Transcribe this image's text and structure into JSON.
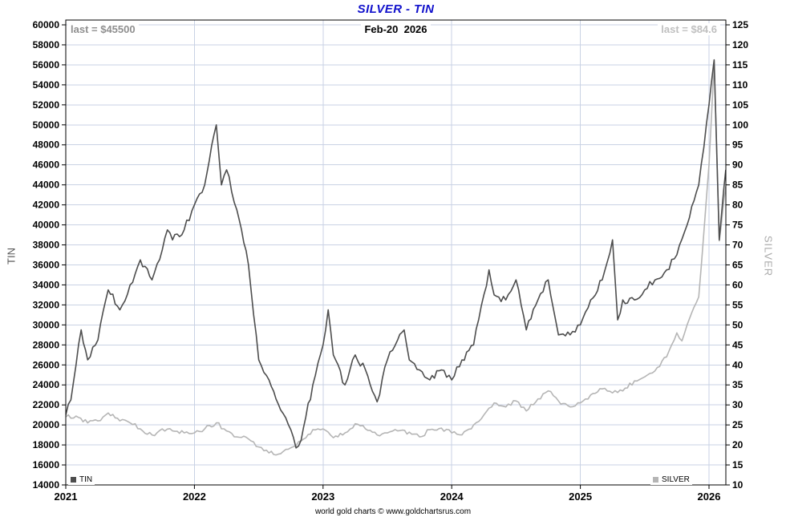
{
  "annotations": {
    "tin_last": "last = $45500",
    "date": "Feb-20  2026",
    "silver_last": "last = $84.6"
  },
  "footer": {
    "text": "world gold charts © www.goldchartsrus.com"
  },
  "colors": {
    "title": "#1111cc",
    "tin_line": "#4d4d4d",
    "silver_line": "#b5b5b5",
    "grid": "#c9d2e4",
    "plot_border": "#000000",
    "axis_text": "#000000",
    "tin_annotation": "#8f8f8f",
    "date_annotation": "#000000",
    "silver_annotation": "#c0c0c0",
    "left_axis_title": "#595959",
    "right_axis_title": "#ababab"
  },
  "chart_data": {
    "type": "line",
    "title": "SILVER - TIN",
    "grid": true,
    "x_ticks": [
      "2021",
      "2022",
      "2023",
      "2024",
      "2025",
      "2026"
    ],
    "x_range": [
      2021.0,
      2026.13
    ],
    "left_axis": {
      "label": "TIN",
      "min": 14000,
      "max": 60000,
      "step": 2000,
      "ticks": [
        14000,
        16000,
        18000,
        20000,
        22000,
        24000,
        26000,
        28000,
        30000,
        32000,
        34000,
        36000,
        38000,
        40000,
        42000,
        44000,
        46000,
        48000,
        50000,
        52000,
        54000,
        56000,
        58000,
        60000
      ]
    },
    "right_axis": {
      "label": "SILVER",
      "min": 10,
      "max": 125,
      "step": 5,
      "ticks": [
        10,
        15,
        20,
        25,
        30,
        35,
        40,
        45,
        50,
        55,
        60,
        65,
        70,
        75,
        80,
        85,
        90,
        95,
        100,
        105,
        110,
        115,
        120,
        125
      ]
    },
    "series": [
      {
        "name": "TIN",
        "axis": "left",
        "color": "#4d4d4d",
        "last_value": 45500,
        "x": [
          2021.0,
          2021.04,
          2021.08,
          2021.12,
          2021.17,
          2021.25,
          2021.33,
          2021.42,
          2021.5,
          2021.58,
          2021.67,
          2021.75,
          2021.79,
          2021.83,
          2021.92,
          2022.0,
          2022.08,
          2022.17,
          2022.21,
          2022.25,
          2022.33,
          2022.42,
          2022.5,
          2022.58,
          2022.67,
          2022.75,
          2022.79,
          2022.83,
          2022.92,
          2023.0,
          2023.04,
          2023.08,
          2023.17,
          2023.25,
          2023.33,
          2023.42,
          2023.5,
          2023.58,
          2023.63,
          2023.67,
          2023.75,
          2023.83,
          2023.92,
          2024.0,
          2024.08,
          2024.17,
          2024.25,
          2024.29,
          2024.33,
          2024.42,
          2024.5,
          2024.58,
          2024.67,
          2024.75,
          2024.83,
          2024.92,
          2025.0,
          2025.08,
          2025.17,
          2025.25,
          2025.29,
          2025.33,
          2025.42,
          2025.5,
          2025.58,
          2025.67,
          2025.75,
          2025.83,
          2025.92,
          2026.0,
          2026.04,
          2026.08,
          2026.13
        ],
        "values": [
          21000,
          22500,
          26000,
          29500,
          26500,
          28500,
          33500,
          31500,
          34000,
          36500,
          34500,
          37500,
          39500,
          38500,
          39500,
          42000,
          44000,
          50000,
          44000,
          45500,
          41500,
          36000,
          26500,
          24500,
          21500,
          19500,
          17700,
          18500,
          24000,
          28000,
          31500,
          27000,
          24000,
          27000,
          25500,
          22300,
          26500,
          28500,
          29500,
          26500,
          25500,
          24500,
          25500,
          24500,
          26500,
          28000,
          33000,
          35500,
          33000,
          32500,
          34500,
          29500,
          32500,
          34500,
          29000,
          29000,
          30000,
          32500,
          34500,
          38500,
          30500,
          32500,
          32500,
          33500,
          34500,
          35500,
          37000,
          40000,
          44000,
          52000,
          56500,
          38500,
          45500
        ]
      },
      {
        "name": "SILVER",
        "axis": "right",
        "color": "#b5b5b5",
        "last_value": 84.6,
        "x": [
          2021.0,
          2021.08,
          2021.17,
          2021.25,
          2021.33,
          2021.42,
          2021.5,
          2021.58,
          2021.67,
          2021.75,
          2021.83,
          2021.92,
          2022.0,
          2022.08,
          2022.17,
          2022.25,
          2022.33,
          2022.42,
          2022.5,
          2022.58,
          2022.67,
          2022.75,
          2022.83,
          2022.92,
          2023.0,
          2023.08,
          2023.17,
          2023.25,
          2023.33,
          2023.42,
          2023.5,
          2023.58,
          2023.67,
          2023.75,
          2023.83,
          2023.92,
          2024.0,
          2024.08,
          2024.17,
          2024.25,
          2024.33,
          2024.42,
          2024.5,
          2024.58,
          2024.67,
          2024.75,
          2024.83,
          2024.92,
          2025.0,
          2025.08,
          2025.17,
          2025.25,
          2025.33,
          2025.42,
          2025.5,
          2025.58,
          2025.67,
          2025.75,
          2025.79,
          2025.83,
          2025.92,
          2026.0,
          2026.04,
          2026.08,
          2026.13
        ],
        "values": [
          27.0,
          27.2,
          25.5,
          26.0,
          28.0,
          26.0,
          25.5,
          24.0,
          22.5,
          24.0,
          23.5,
          23.0,
          23.0,
          24.0,
          25.5,
          23.5,
          22.0,
          21.5,
          19.5,
          18.0,
          17.8,
          19.3,
          21.0,
          23.8,
          24.0,
          21.8,
          23.0,
          25.3,
          24.0,
          22.5,
          23.0,
          23.5,
          23.2,
          22.0,
          23.8,
          24.2,
          23.0,
          22.5,
          25.0,
          27.5,
          30.5,
          29.5,
          31.0,
          28.5,
          31.5,
          33.5,
          31.0,
          29.5,
          30.5,
          32.5,
          34.0,
          33.0,
          33.5,
          36.0,
          37.0,
          38.5,
          42.0,
          48.0,
          46.0,
          50.0,
          57.0,
          90.0,
          116.0,
          71.0,
          84.6
        ]
      }
    ]
  }
}
